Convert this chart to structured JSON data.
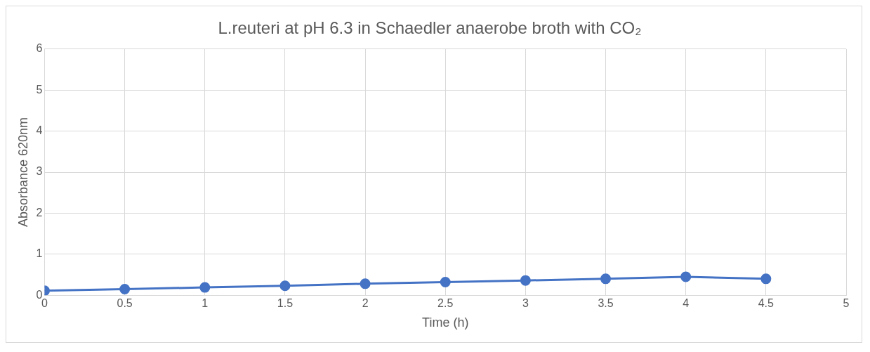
{
  "chart_data": {
    "type": "line",
    "title": "L.reuteri at pH 6.3 in Schaedler anaerobe broth with CO₂",
    "xlabel": "Time (h)",
    "ylabel": "Absorbance 620nm",
    "x": [
      0,
      0.5,
      1,
      1.5,
      2,
      2.5,
      3,
      3.5,
      4,
      4.5
    ],
    "series": [
      {
        "color": "#4472c4",
        "values": [
          0.11,
          0.15,
          0.19,
          0.23,
          0.28,
          0.32,
          0.36,
          0.4,
          0.45,
          0.4
        ]
      }
    ],
    "xlim": [
      0,
      5
    ],
    "xticks": [
      0,
      0.5,
      1,
      1.5,
      2,
      2.5,
      3,
      3.5,
      4,
      4.5,
      5
    ],
    "ylim": [
      0,
      6
    ],
    "yticks": [
      0,
      1,
      2,
      3,
      4,
      5,
      6
    ],
    "grid": true,
    "legend": false,
    "marker": "circle",
    "line_style": "solid"
  }
}
